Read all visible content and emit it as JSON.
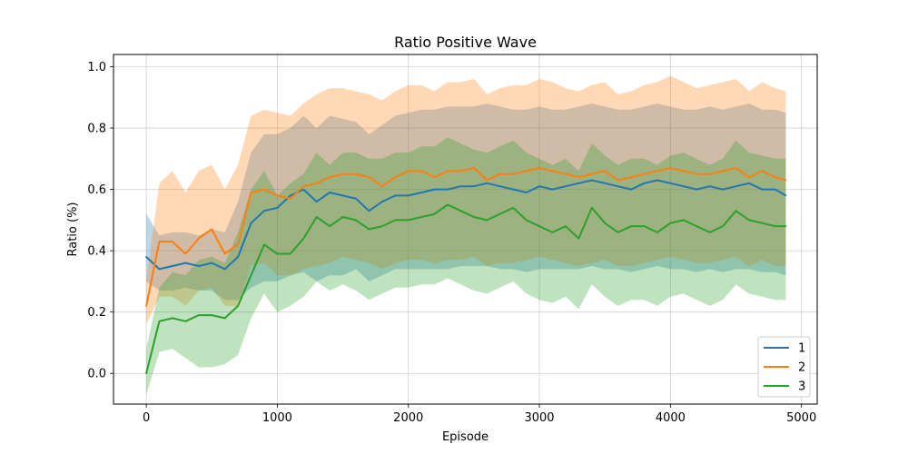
{
  "chart_data": {
    "type": "line",
    "title": "Ratio Positive Wave",
    "xlabel": "Episode",
    "ylabel": "Ratio (%)",
    "xlim": [
      -250,
      5120
    ],
    "ylim": [
      -0.1,
      1.04
    ],
    "xticks": [
      0,
      1000,
      2000,
      3000,
      4000,
      5000
    ],
    "xtick_labels": [
      "0",
      "1000",
      "2000",
      "3000",
      "4000",
      "5000"
    ],
    "yticks": [
      0.0,
      0.2,
      0.4,
      0.6,
      0.8,
      1.0
    ],
    "ytick_labels": [
      "0.0",
      "0.2",
      "0.4",
      "0.6",
      "0.8",
      "1.0"
    ],
    "grid": true,
    "legend_position": "bottom-right",
    "x": [
      0,
      100,
      200,
      300,
      400,
      500,
      600,
      700,
      800,
      900,
      1000,
      1100,
      1200,
      1300,
      1400,
      1500,
      1600,
      1700,
      1800,
      1900,
      2000,
      2100,
      2200,
      2300,
      2400,
      2500,
      2600,
      2700,
      2800,
      2900,
      3000,
      3100,
      3200,
      3300,
      3400,
      3500,
      3600,
      3700,
      3800,
      3900,
      4000,
      4100,
      4200,
      4300,
      4400,
      4500,
      4600,
      4700,
      4800,
      4880
    ],
    "series": [
      {
        "name": "1",
        "color": "#1f77b4",
        "values": [
          0.38,
          0.34,
          0.35,
          0.36,
          0.35,
          0.36,
          0.34,
          0.38,
          0.49,
          0.53,
          0.54,
          0.58,
          0.6,
          0.56,
          0.59,
          0.58,
          0.57,
          0.53,
          0.56,
          0.58,
          0.58,
          0.59,
          0.6,
          0.6,
          0.61,
          0.61,
          0.62,
          0.61,
          0.6,
          0.59,
          0.61,
          0.6,
          0.61,
          0.62,
          0.63,
          0.62,
          0.61,
          0.6,
          0.62,
          0.63,
          0.62,
          0.61,
          0.6,
          0.61,
          0.6,
          0.61,
          0.62,
          0.6,
          0.6,
          0.58
        ],
        "lower": [
          0.3,
          0.27,
          0.27,
          0.28,
          0.27,
          0.27,
          0.24,
          0.24,
          0.28,
          0.3,
          0.3,
          0.32,
          0.33,
          0.3,
          0.32,
          0.32,
          0.34,
          0.3,
          0.32,
          0.34,
          0.34,
          0.34,
          0.34,
          0.34,
          0.35,
          0.35,
          0.35,
          0.34,
          0.34,
          0.33,
          0.34,
          0.34,
          0.34,
          0.34,
          0.35,
          0.34,
          0.34,
          0.33,
          0.34,
          0.35,
          0.34,
          0.34,
          0.33,
          0.34,
          0.33,
          0.34,
          0.34,
          0.33,
          0.33,
          0.32
        ],
        "upper": [
          0.52,
          0.45,
          0.46,
          0.46,
          0.45,
          0.47,
          0.46,
          0.56,
          0.72,
          0.78,
          0.78,
          0.8,
          0.84,
          0.8,
          0.84,
          0.83,
          0.82,
          0.78,
          0.81,
          0.84,
          0.85,
          0.86,
          0.86,
          0.87,
          0.87,
          0.87,
          0.88,
          0.87,
          0.86,
          0.86,
          0.87,
          0.86,
          0.86,
          0.87,
          0.88,
          0.87,
          0.86,
          0.86,
          0.87,
          0.88,
          0.87,
          0.86,
          0.86,
          0.87,
          0.86,
          0.87,
          0.88,
          0.86,
          0.86,
          0.85
        ]
      },
      {
        "name": "2",
        "color": "#ff7f0e",
        "values": [
          0.22,
          0.43,
          0.43,
          0.39,
          0.44,
          0.47,
          0.39,
          0.42,
          0.59,
          0.6,
          0.58,
          0.57,
          0.61,
          0.62,
          0.64,
          0.65,
          0.65,
          0.64,
          0.61,
          0.64,
          0.66,
          0.66,
          0.64,
          0.66,
          0.66,
          0.67,
          0.63,
          0.65,
          0.65,
          0.66,
          0.67,
          0.66,
          0.65,
          0.64,
          0.65,
          0.66,
          0.63,
          0.64,
          0.65,
          0.66,
          0.67,
          0.66,
          0.65,
          0.65,
          0.66,
          0.67,
          0.64,
          0.66,
          0.64,
          0.63
        ],
        "lower": [
          0.16,
          0.25,
          0.25,
          0.22,
          0.27,
          0.28,
          0.22,
          0.22,
          0.35,
          0.36,
          0.32,
          0.32,
          0.34,
          0.35,
          0.36,
          0.38,
          0.37,
          0.36,
          0.34,
          0.36,
          0.37,
          0.37,
          0.36,
          0.37,
          0.37,
          0.38,
          0.35,
          0.36,
          0.36,
          0.37,
          0.38,
          0.37,
          0.36,
          0.35,
          0.36,
          0.37,
          0.35,
          0.35,
          0.36,
          0.37,
          0.38,
          0.37,
          0.36,
          0.36,
          0.37,
          0.38,
          0.35,
          0.37,
          0.35,
          0.35
        ],
        "upper": [
          0.3,
          0.62,
          0.66,
          0.59,
          0.66,
          0.68,
          0.6,
          0.68,
          0.84,
          0.86,
          0.85,
          0.84,
          0.88,
          0.91,
          0.93,
          0.93,
          0.92,
          0.91,
          0.89,
          0.92,
          0.94,
          0.94,
          0.92,
          0.95,
          0.95,
          0.96,
          0.91,
          0.93,
          0.94,
          0.94,
          0.96,
          0.95,
          0.93,
          0.92,
          0.94,
          0.95,
          0.91,
          0.92,
          0.94,
          0.95,
          0.97,
          0.95,
          0.93,
          0.94,
          0.95,
          0.96,
          0.92,
          0.95,
          0.93,
          0.92
        ]
      },
      {
        "name": "3",
        "color": "#2ca02c",
        "values": [
          0.0,
          0.17,
          0.18,
          0.17,
          0.19,
          0.19,
          0.18,
          0.22,
          0.32,
          0.42,
          0.39,
          0.39,
          0.44,
          0.51,
          0.48,
          0.51,
          0.5,
          0.47,
          0.48,
          0.5,
          0.5,
          0.51,
          0.52,
          0.55,
          0.53,
          0.51,
          0.5,
          0.52,
          0.54,
          0.5,
          0.48,
          0.46,
          0.48,
          0.44,
          0.54,
          0.49,
          0.46,
          0.48,
          0.48,
          0.46,
          0.49,
          0.5,
          0.48,
          0.46,
          0.48,
          0.53,
          0.5,
          0.49,
          0.48,
          0.48
        ],
        "lower": [
          -0.07,
          0.07,
          0.08,
          0.05,
          0.02,
          0.02,
          0.03,
          0.06,
          0.18,
          0.26,
          0.2,
          0.22,
          0.25,
          0.3,
          0.27,
          0.29,
          0.27,
          0.24,
          0.26,
          0.28,
          0.28,
          0.29,
          0.29,
          0.31,
          0.29,
          0.27,
          0.26,
          0.28,
          0.3,
          0.26,
          0.24,
          0.23,
          0.25,
          0.21,
          0.29,
          0.25,
          0.22,
          0.24,
          0.24,
          0.22,
          0.25,
          0.26,
          0.24,
          0.22,
          0.24,
          0.29,
          0.26,
          0.25,
          0.24,
          0.24
        ],
        "upper": [
          0.08,
          0.28,
          0.33,
          0.32,
          0.37,
          0.38,
          0.36,
          0.46,
          0.6,
          0.66,
          0.58,
          0.62,
          0.65,
          0.72,
          0.68,
          0.72,
          0.72,
          0.7,
          0.7,
          0.72,
          0.72,
          0.74,
          0.74,
          0.77,
          0.75,
          0.73,
          0.72,
          0.74,
          0.76,
          0.72,
          0.7,
          0.68,
          0.7,
          0.66,
          0.75,
          0.71,
          0.68,
          0.7,
          0.7,
          0.68,
          0.71,
          0.72,
          0.7,
          0.68,
          0.7,
          0.76,
          0.72,
          0.71,
          0.7,
          0.7
        ]
      }
    ]
  }
}
